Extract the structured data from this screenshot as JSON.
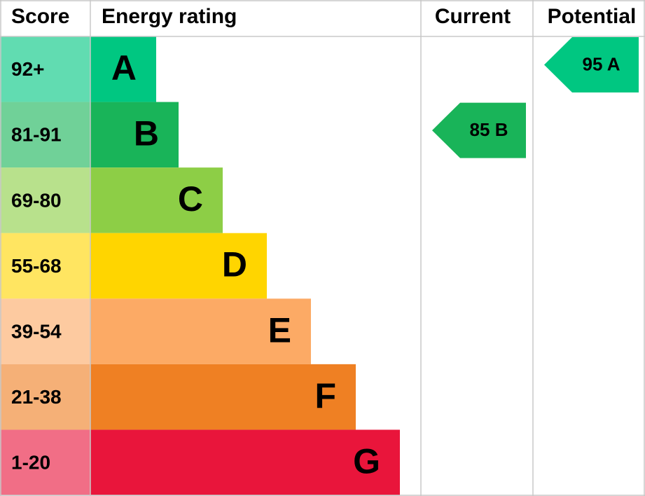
{
  "header": {
    "score": "Score",
    "energy_rating": "Energy rating",
    "current": "Current",
    "potential": "Potential"
  },
  "rows": [
    {
      "score": "92+",
      "rating": "A",
      "color": "#00c781"
    },
    {
      "score": "81-91",
      "rating": "B",
      "color": "#19b459"
    },
    {
      "score": "69-80",
      "rating": "C",
      "color": "#8dce46"
    },
    {
      "score": "55-68",
      "rating": "D",
      "color": "#ffd500"
    },
    {
      "score": "39-54",
      "rating": "E",
      "color": "#fcaa65"
    },
    {
      "score": "21-38",
      "rating": "F",
      "color": "#ef8023"
    },
    {
      "score": "1-20",
      "rating": "G",
      "color": "#e9153b"
    }
  ],
  "current": {
    "score": 85,
    "rating": "B"
  },
  "potential": {
    "score": 95,
    "rating": "A"
  }
}
